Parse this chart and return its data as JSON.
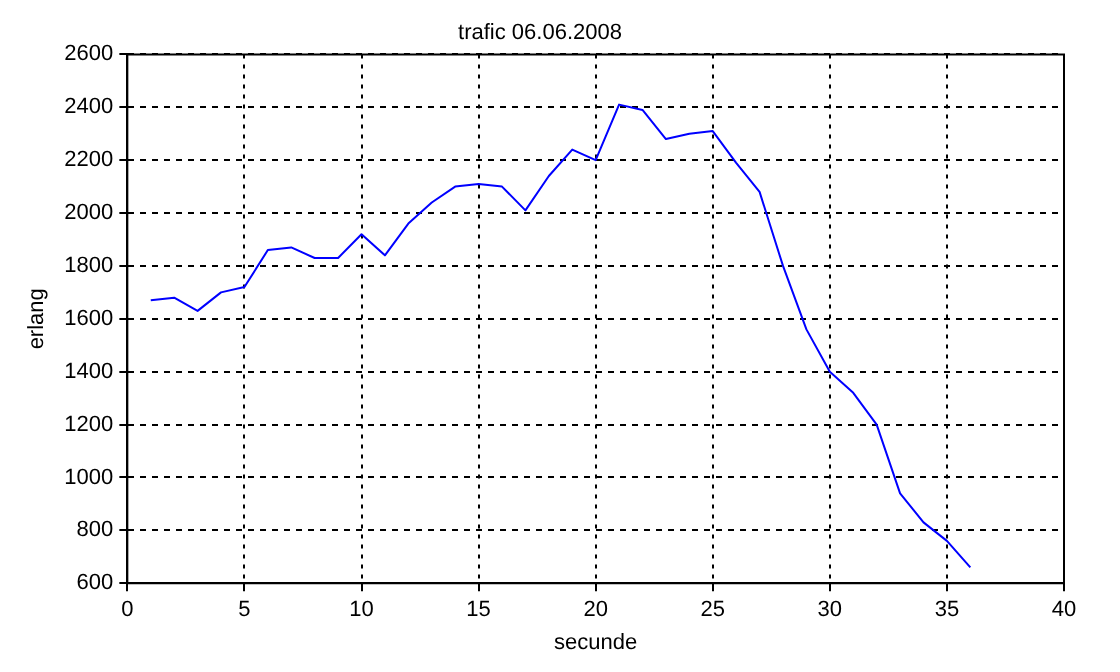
{
  "chart_data": {
    "type": "line",
    "title": "trafic 06.06.2008",
    "xlabel": "secunde",
    "ylabel": "erlang",
    "x": [
      1,
      2,
      3,
      4,
      5,
      6,
      7,
      8,
      9,
      10,
      11,
      12,
      13,
      14,
      15,
      16,
      17,
      18,
      19,
      20,
      21,
      22,
      23,
      24,
      25,
      26,
      27,
      28,
      29,
      30,
      31,
      32,
      33,
      34,
      35,
      36
    ],
    "series": [
      {
        "color": "#0000ff",
        "values": [
          1670,
          1680,
          1630,
          1700,
          1720,
          1860,
          1870,
          1830,
          1830,
          1920,
          1840,
          1960,
          2040,
          2100,
          2110,
          2100,
          2010,
          2140,
          2240,
          2200,
          2410,
          2390,
          2280,
          2300,
          2310,
          2190,
          2080,
          1800,
          1560,
          1400,
          1320,
          1200,
          940,
          830,
          760,
          660
        ]
      }
    ],
    "xlim": [
      0,
      40
    ],
    "xticks": [
      0,
      5,
      10,
      15,
      20,
      25,
      30,
      35,
      40
    ],
    "ylim": [
      600,
      2600
    ],
    "yticks": [
      600,
      800,
      1000,
      1200,
      1400,
      1600,
      1800,
      2000,
      2200,
      2400,
      2600
    ],
    "grid": true,
    "legend": false,
    "marker": "none",
    "line_style": "solid"
  }
}
